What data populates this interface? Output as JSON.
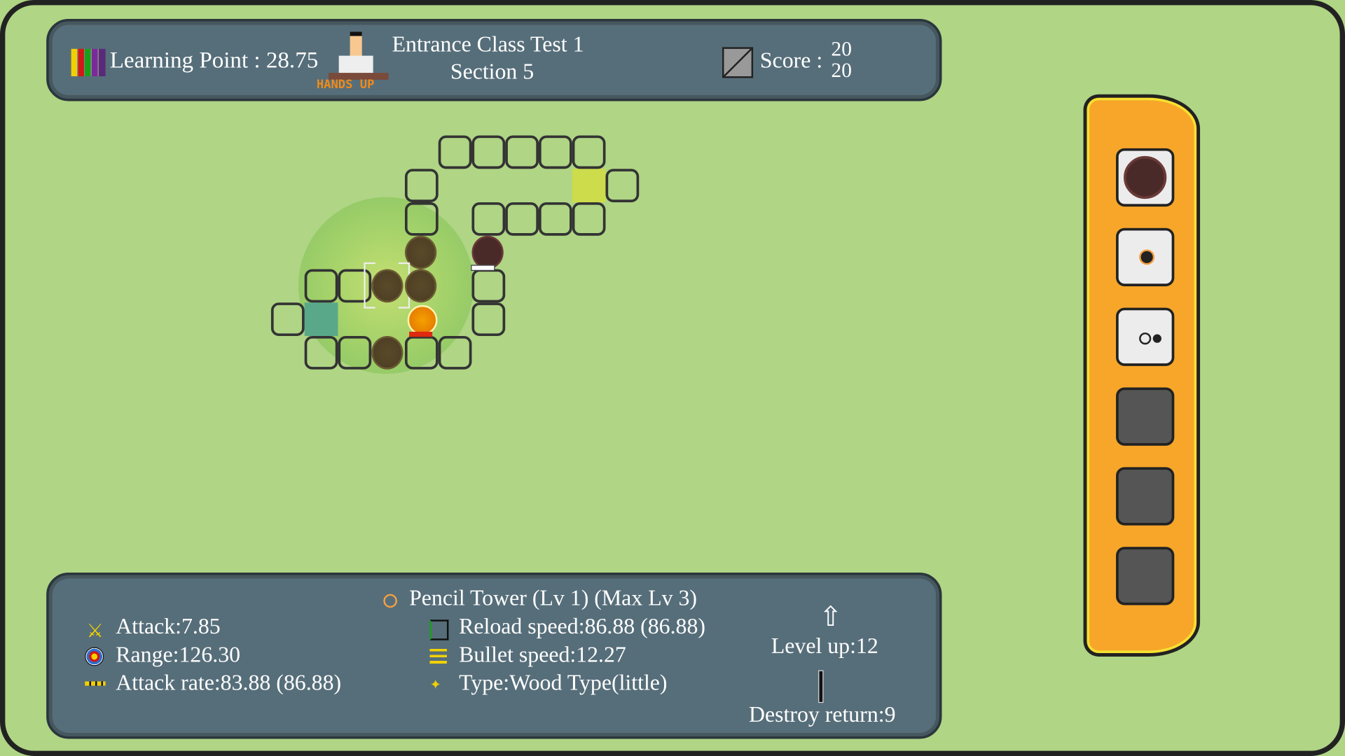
{
  "hud": {
    "learning_point_label": "Learning Point : 28.75",
    "hands_up_label": "HANDS UP",
    "stage_title": "Entrance Class Test 1",
    "stage_section": "Section 5",
    "score_label": "Score :",
    "score_top": "20",
    "score_bottom": "20"
  },
  "tower_info": {
    "name": "Pencil Tower (Lv 1) (Max Lv 3)",
    "attack": "Attack:7.85",
    "range": "Range:126.30",
    "attack_rate": "Attack rate:83.88 (86.88)",
    "reload_speed": "Reload speed:86.88 (86.88)",
    "bullet_speed": "Bullet speed:12.27",
    "type": "Type:Wood Type(little)",
    "level_up": "Level up:12",
    "destroy_return": "Destroy return:9"
  },
  "tower_slots": [
    {
      "icon": "dark-tower-icon",
      "empty": false
    },
    {
      "icon": "pencil-tower-icon",
      "empty": false
    },
    {
      "icon": "eraser-tower-icon",
      "empty": false
    },
    {
      "empty": true
    },
    {
      "empty": true
    },
    {
      "empty": true
    }
  ],
  "colors": {
    "background": "#afd585",
    "panel": "#566e7a",
    "side_panel": "#f7a62a",
    "hands_up": "#f08a1a",
    "highlight": "#cddc4a"
  }
}
